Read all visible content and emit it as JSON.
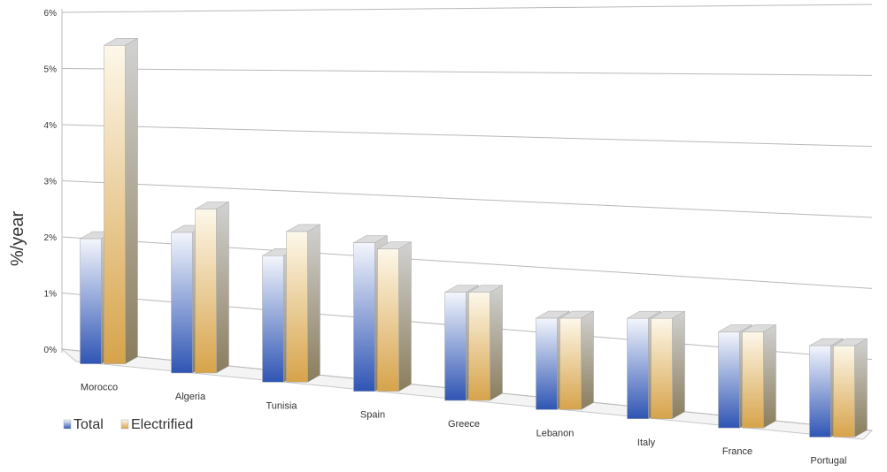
{
  "chart_data": {
    "type": "bar",
    "title": "",
    "xlabel": "",
    "ylabel": "%/year",
    "ylim": [
      0,
      6
    ],
    "yticks": [
      "0%",
      "1%",
      "2%",
      "3%",
      "4%",
      "5%",
      "6%"
    ],
    "grid": true,
    "legend_position": "bottom-left",
    "categories": [
      "Morocco",
      "Algeria",
      "Tunisia",
      "Spain",
      "Greece",
      "Lebanon",
      "Italy",
      "France",
      "Portugal"
    ],
    "series": [
      {
        "name": "Total",
        "color": "#2f55b4",
        "values": [
          2.2,
          2.4,
          2.1,
          2.4,
          1.7,
          1.4,
          1.5,
          1.4,
          1.3
        ]
      },
      {
        "name": "Electrified",
        "color": "#d7a34a",
        "values": [
          5.6,
          2.8,
          2.5,
          2.3,
          1.7,
          1.4,
          1.5,
          1.4,
          1.3
        ]
      }
    ]
  }
}
